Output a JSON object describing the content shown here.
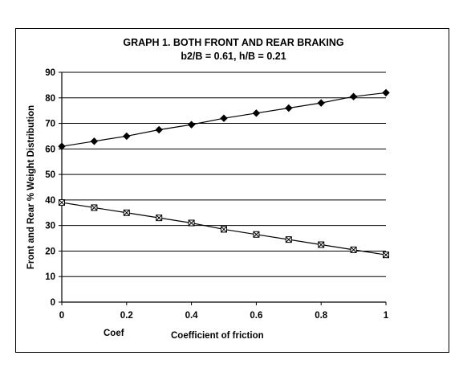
{
  "chart_data": {
    "type": "line",
    "title_line1": "GRAPH 1. BOTH FRONT AND REAR BRAKING",
    "title_line2": "b2/B = 0.61,  h/B = 0.21",
    "xlabel": "Coefficient of friction",
    "xlabel_extra": "Coef",
    "ylabel": "Front and Rear % Weight Distribution",
    "xlim": [
      0,
      1
    ],
    "ylim": [
      0,
      90
    ],
    "x_ticks": [
      "0",
      "0.2",
      "0.4",
      "0.6",
      "0.8",
      "1"
    ],
    "x_tick_values": [
      0,
      0.2,
      0.4,
      0.6,
      0.8,
      1
    ],
    "y_ticks": [
      "0",
      "10",
      "20",
      "30",
      "40",
      "50",
      "60",
      "70",
      "80",
      "90"
    ],
    "y_tick_values": [
      0,
      10,
      20,
      30,
      40,
      50,
      60,
      70,
      80,
      90
    ],
    "grid": "horizontal",
    "x": [
      0,
      0.1,
      0.2,
      0.3,
      0.4,
      0.5,
      0.6,
      0.7,
      0.8,
      0.9,
      1.0
    ],
    "series": [
      {
        "marker": "diamond",
        "values": [
          61,
          63,
          65,
          67.5,
          69.5,
          72,
          74,
          76,
          78,
          80.5,
          82
        ]
      },
      {
        "marker": "boxed-x",
        "values": [
          39,
          37,
          35,
          33,
          31,
          28.5,
          26.5,
          24.5,
          22.5,
          20.5,
          18.5
        ]
      }
    ]
  }
}
